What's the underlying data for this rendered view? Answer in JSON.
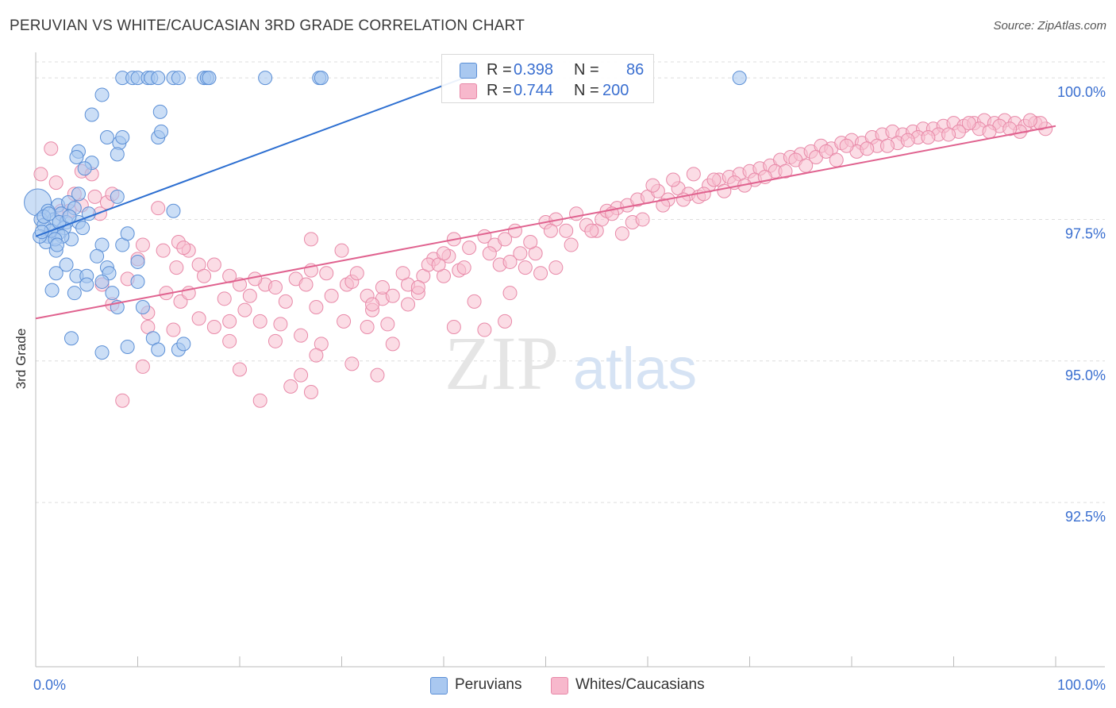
{
  "header": {
    "title": "PERUVIAN VS WHITE/CAUCASIAN 3RD GRADE CORRELATION CHART",
    "source": "Source: ZipAtlas.com"
  },
  "watermark": {
    "zip": "ZIP",
    "atlas": "atlas"
  },
  "legend": {
    "rows": [
      {
        "r_label": "R =",
        "r_value": "0.398",
        "n_label": "N =",
        "n_value": "86",
        "color": "#a9c8f0"
      },
      {
        "r_label": "R =",
        "r_value": "0.744",
        "n_label": "N =",
        "n_value": "200",
        "color": "#f7b8cc"
      }
    ]
  },
  "bottom_legend": [
    {
      "label": "Peruvians",
      "color": "#a9c8f0"
    },
    {
      "label": "Whites/Caucasians",
      "color": "#f7b8cc"
    }
  ],
  "colors": {
    "blue_fill": "#a9c8f0",
    "blue_stroke": "#5b8fd6",
    "blue_line": "#2d6fd1",
    "pink_fill": "#f7bfd0",
    "pink_stroke": "#e889a8",
    "pink_line": "#e0628f",
    "tick_text": "#3a6fd0",
    "grid": "#dedede"
  },
  "chart_data": {
    "type": "scatter",
    "title": "PERUVIAN VS WHITE/CAUCASIAN 3RD GRADE CORRELATION CHART",
    "xlabel": "",
    "ylabel": "3rd Grade",
    "xlim": [
      0,
      100
    ],
    "ylim": [
      89.6,
      100.45
    ],
    "x_tick_labels": [
      "0.0%",
      "100.0%"
    ],
    "y_ticks": [
      92.5,
      95.0,
      97.5,
      100.0
    ],
    "y_tick_labels": [
      "92.5%",
      "95.0%",
      "97.5%",
      "100.0%"
    ],
    "grid": true,
    "series": [
      {
        "name": "Peruvians",
        "trend": {
          "x0": 0,
          "y0": 97.2,
          "x1": 42,
          "y1": 100.0
        },
        "big_point": [
          0.2,
          97.8
        ],
        "points": [
          [
            8.5,
            100
          ],
          [
            9.5,
            100
          ],
          [
            10,
            100
          ],
          [
            11,
            100
          ],
          [
            11.3,
            100
          ],
          [
            12,
            100
          ],
          [
            13.5,
            100
          ],
          [
            14,
            100
          ],
          [
            16.5,
            100
          ],
          [
            16.8,
            100
          ],
          [
            17,
            100
          ],
          [
            22.5,
            100
          ],
          [
            27.8,
            100
          ],
          [
            28,
            100
          ],
          [
            69,
            100
          ],
          [
            6.5,
            99.7
          ],
          [
            5.5,
            99.35
          ],
          [
            12.2,
            99.4
          ],
          [
            7,
            98.95
          ],
          [
            8.2,
            98.85
          ],
          [
            8.5,
            98.95
          ],
          [
            12,
            98.95
          ],
          [
            12.3,
            99.05
          ],
          [
            4.2,
            98.7
          ],
          [
            4,
            98.6
          ],
          [
            5.5,
            98.5
          ],
          [
            4.8,
            98.4
          ],
          [
            8,
            98.65
          ],
          [
            4.2,
            97.95
          ],
          [
            8,
            97.9
          ],
          [
            2.2,
            97.75
          ],
          [
            3.2,
            97.8
          ],
          [
            1.2,
            97.65
          ],
          [
            1.8,
            97.5
          ],
          [
            2.5,
            97.6
          ],
          [
            3,
            97.45
          ],
          [
            4.2,
            97.45
          ],
          [
            5.2,
            97.6
          ],
          [
            13.5,
            97.65
          ],
          [
            0.5,
            97.5
          ],
          [
            0.8,
            97.4
          ],
          [
            1.2,
            97.2
          ],
          [
            1.5,
            97.3
          ],
          [
            2.8,
            97.35
          ],
          [
            2.2,
            97.25
          ],
          [
            1,
            97.1
          ],
          [
            0.4,
            97.2
          ],
          [
            3.5,
            97.15
          ],
          [
            6.5,
            97.05
          ],
          [
            8.5,
            97.05
          ],
          [
            9,
            97.25
          ],
          [
            2,
            96.95
          ],
          [
            6,
            96.85
          ],
          [
            7,
            96.65
          ],
          [
            3,
            96.7
          ],
          [
            10,
            96.75
          ],
          [
            4,
            96.5
          ],
          [
            5,
            96.5
          ],
          [
            7.2,
            96.55
          ],
          [
            2,
            96.55
          ],
          [
            5,
            96.35
          ],
          [
            6.5,
            96.4
          ],
          [
            10,
            96.4
          ],
          [
            3.8,
            96.2
          ],
          [
            1.6,
            96.25
          ],
          [
            7.5,
            96.2
          ],
          [
            8,
            95.95
          ],
          [
            10.5,
            95.95
          ],
          [
            3.5,
            95.4
          ],
          [
            11.5,
            95.4
          ],
          [
            9,
            95.25
          ],
          [
            12,
            95.2
          ],
          [
            14,
            95.2
          ],
          [
            6.5,
            95.15
          ],
          [
            14.5,
            95.3
          ],
          [
            1.5,
            97.3
          ],
          [
            2.3,
            97.45
          ],
          [
            0.8,
            97.55
          ],
          [
            3.8,
            97.7
          ],
          [
            2.6,
            97.2
          ],
          [
            1.9,
            97.15
          ],
          [
            4.6,
            97.35
          ],
          [
            0.6,
            97.28
          ],
          [
            1.3,
            97.6
          ],
          [
            3.3,
            97.55
          ],
          [
            2.1,
            97.05
          ]
        ]
      },
      {
        "name": "Whites/Caucasians",
        "trend": {
          "x0": 0,
          "y0": 95.75,
          "x1": 100,
          "y1": 99.15
        },
        "points": [
          [
            0.5,
            98.3
          ],
          [
            1.5,
            98.75
          ],
          [
            2,
            98.15
          ],
          [
            4.5,
            98.35
          ],
          [
            5.5,
            98.3
          ],
          [
            3.8,
            97.95
          ],
          [
            4.5,
            97.75
          ],
          [
            7,
            97.8
          ],
          [
            7.5,
            97.95
          ],
          [
            2.5,
            97.65
          ],
          [
            5.8,
            97.9
          ],
          [
            6.3,
            97.6
          ],
          [
            12,
            97.7
          ],
          [
            10.5,
            97.05
          ],
          [
            10,
            96.8
          ],
          [
            14,
            97.1
          ],
          [
            15,
            96.95
          ],
          [
            12.5,
            96.95
          ],
          [
            16,
            96.7
          ],
          [
            17.5,
            96.7
          ],
          [
            14.5,
            97.0
          ],
          [
            19,
            96.5
          ],
          [
            21,
            96.15
          ],
          [
            22.5,
            96.35
          ],
          [
            16.5,
            96.5
          ],
          [
            9,
            96.45
          ],
          [
            6.5,
            96.35
          ],
          [
            12.8,
            96.2
          ],
          [
            14.2,
            96.05
          ],
          [
            15,
            96.2
          ],
          [
            20,
            96.35
          ],
          [
            7.5,
            96.0
          ],
          [
            11,
            95.85
          ],
          [
            16,
            95.75
          ],
          [
            17.5,
            95.6
          ],
          [
            19,
            95.7
          ],
          [
            20.5,
            95.9
          ],
          [
            22,
            95.7
          ],
          [
            11,
            95.6
          ],
          [
            13.5,
            95.55
          ],
          [
            19,
            95.35
          ],
          [
            24,
            95.65
          ],
          [
            27.5,
            95.95
          ],
          [
            26,
            95.45
          ],
          [
            28,
            95.3
          ],
          [
            30.2,
            95.7
          ],
          [
            32.5,
            95.6
          ],
          [
            34.5,
            95.65
          ],
          [
            35,
            95.3
          ],
          [
            33,
            95.9
          ],
          [
            23.5,
            96.3
          ],
          [
            25.5,
            96.45
          ],
          [
            27,
            96.6
          ],
          [
            28.5,
            96.55
          ],
          [
            30.5,
            96.35
          ],
          [
            32.5,
            96.15
          ],
          [
            34,
            96.1
          ],
          [
            36.5,
            96.35
          ],
          [
            37.5,
            96.2
          ],
          [
            38,
            96.5
          ],
          [
            39,
            96.8
          ],
          [
            40,
            96.5
          ],
          [
            10.5,
            94.9
          ],
          [
            8.5,
            94.3
          ],
          [
            20,
            94.85
          ],
          [
            22,
            94.3
          ],
          [
            23.5,
            95.35
          ],
          [
            25,
            94.55
          ],
          [
            26,
            94.75
          ],
          [
            27,
            94.45
          ],
          [
            27.5,
            95.1
          ],
          [
            31,
            94.95
          ],
          [
            33.5,
            94.75
          ],
          [
            27,
            97.15
          ],
          [
            30,
            96.95
          ],
          [
            31,
            96.4
          ],
          [
            33,
            96.0
          ],
          [
            35,
            96.15
          ],
          [
            36.5,
            96.0
          ],
          [
            37.5,
            96.3
          ],
          [
            38.5,
            96.7
          ],
          [
            39.5,
            96.7
          ],
          [
            40.5,
            96.85
          ],
          [
            41.5,
            96.6
          ],
          [
            40,
            96.9
          ],
          [
            41,
            97.15
          ],
          [
            42.5,
            97.0
          ],
          [
            44,
            97.2
          ],
          [
            45,
            97.05
          ],
          [
            46,
            97.15
          ],
          [
            45.5,
            96.7
          ],
          [
            46.5,
            96.75
          ],
          [
            47.5,
            96.9
          ],
          [
            49,
            96.9
          ],
          [
            48,
            96.65
          ],
          [
            49.5,
            96.55
          ],
          [
            51,
            96.65
          ],
          [
            43,
            96.05
          ],
          [
            44,
            95.55
          ],
          [
            46,
            95.7
          ],
          [
            46.5,
            96.2
          ],
          [
            41,
            95.6
          ],
          [
            50,
            97.45
          ],
          [
            51,
            97.5
          ],
          [
            52,
            97.3
          ],
          [
            53,
            97.6
          ],
          [
            54,
            97.4
          ],
          [
            55,
            97.3
          ],
          [
            55.5,
            97.5
          ],
          [
            56,
            97.65
          ],
          [
            57,
            97.7
          ],
          [
            58,
            97.75
          ],
          [
            59,
            97.85
          ],
          [
            60,
            97.9
          ],
          [
            58.5,
            97.45
          ],
          [
            57.5,
            97.25
          ],
          [
            61,
            98.0
          ],
          [
            62,
            97.85
          ],
          [
            63,
            98.05
          ],
          [
            64,
            97.95
          ],
          [
            65,
            97.9
          ],
          [
            66,
            98.1
          ],
          [
            67,
            98.2
          ],
          [
            68,
            98.25
          ],
          [
            69,
            98.3
          ],
          [
            70,
            98.35
          ],
          [
            71,
            98.4
          ],
          [
            72,
            98.45
          ],
          [
            73,
            98.55
          ],
          [
            74,
            98.6
          ],
          [
            75,
            98.65
          ],
          [
            60.5,
            98.1
          ],
          [
            62.5,
            98.2
          ],
          [
            64.5,
            98.3
          ],
          [
            66.5,
            98.2
          ],
          [
            68.5,
            98.15
          ],
          [
            70.5,
            98.2
          ],
          [
            72.5,
            98.35
          ],
          [
            74.5,
            98.55
          ],
          [
            76,
            98.7
          ],
          [
            77,
            98.8
          ],
          [
            78,
            98.75
          ],
          [
            79,
            98.85
          ],
          [
            80,
            98.9
          ],
          [
            81,
            98.85
          ],
          [
            82,
            98.95
          ],
          [
            83,
            99.0
          ],
          [
            84,
            99.05
          ],
          [
            85,
            99.0
          ],
          [
            86,
            99.05
          ],
          [
            87,
            99.1
          ],
          [
            88,
            99.1
          ],
          [
            89,
            99.15
          ],
          [
            90,
            99.2
          ],
          [
            91,
            99.15
          ],
          [
            92,
            99.2
          ],
          [
            93,
            99.25
          ],
          [
            94,
            99.2
          ],
          [
            95,
            99.25
          ],
          [
            96,
            99.2
          ],
          [
            97,
            99.15
          ],
          [
            98,
            99.2
          ],
          [
            99,
            99.1
          ],
          [
            76.5,
            98.6
          ],
          [
            78.5,
            98.55
          ],
          [
            80.5,
            98.7
          ],
          [
            82.5,
            98.8
          ],
          [
            84.5,
            98.85
          ],
          [
            86.5,
            98.95
          ],
          [
            88.5,
            99.0
          ],
          [
            90.5,
            99.05
          ],
          [
            92.5,
            99.1
          ],
          [
            94.5,
            99.15
          ],
          [
            96.5,
            99.05
          ],
          [
            98.5,
            99.2
          ],
          [
            97.5,
            99.25
          ],
          [
            95.5,
            99.1
          ],
          [
            93.5,
            99.05
          ],
          [
            91.5,
            99.2
          ],
          [
            89.5,
            99.0
          ],
          [
            87.5,
            98.95
          ],
          [
            85.5,
            98.9
          ],
          [
            83.5,
            98.8
          ],
          [
            81.5,
            98.75
          ],
          [
            79.5,
            98.8
          ],
          [
            77.5,
            98.7
          ],
          [
            75.5,
            98.45
          ],
          [
            73.5,
            98.35
          ],
          [
            71.5,
            98.25
          ],
          [
            69.5,
            98.1
          ],
          [
            67.5,
            98.0
          ],
          [
            65.5,
            97.95
          ],
          [
            63.5,
            97.85
          ],
          [
            61.5,
            97.75
          ],
          [
            59.5,
            97.5
          ],
          [
            52.5,
            97.05
          ],
          [
            54.5,
            97.3
          ],
          [
            56.5,
            97.6
          ],
          [
            50.5,
            97.3
          ],
          [
            48.5,
            97.1
          ],
          [
            47,
            97.3
          ],
          [
            44.5,
            96.9
          ],
          [
            42,
            96.65
          ],
          [
            36,
            96.55
          ],
          [
            34,
            96.3
          ],
          [
            29,
            96.15
          ],
          [
            31.5,
            96.55
          ],
          [
            24.5,
            96.05
          ],
          [
            26.5,
            96.35
          ],
          [
            18.5,
            96.1
          ],
          [
            21.5,
            96.45
          ],
          [
            13.8,
            96.65
          ],
          [
            3.3,
            97.65
          ]
        ]
      }
    ]
  }
}
